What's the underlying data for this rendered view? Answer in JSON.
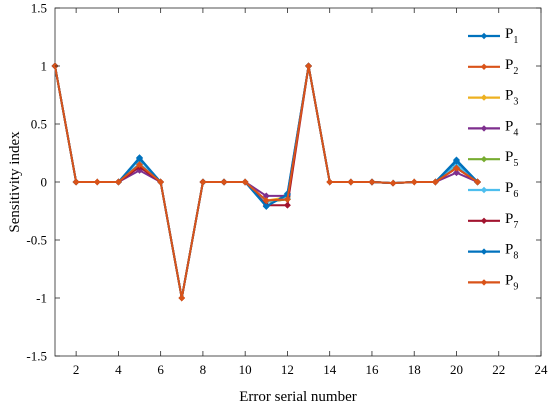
{
  "chart_data": {
    "type": "line",
    "xlabel": "Error serial number",
    "ylabel": "Sensitivity index",
    "xlim": [
      1,
      24
    ],
    "ylim": [
      -1.5,
      1.5
    ],
    "xticks": [
      2,
      4,
      6,
      8,
      10,
      12,
      14,
      16,
      18,
      20,
      22,
      24
    ],
    "yticks": [
      -1.5,
      -1,
      -0.5,
      0,
      0.5,
      1,
      1.5
    ],
    "ytick_labels": [
      "-1.5",
      "-1",
      "-0.5",
      "0",
      "0.5",
      "1",
      "1.5"
    ],
    "grid": false,
    "legend_position": "right",
    "x": [
      1,
      2,
      3,
      4,
      5,
      6,
      7,
      8,
      9,
      10,
      11,
      12,
      13,
      14,
      15,
      16,
      17,
      18,
      19,
      20,
      21
    ],
    "series": [
      {
        "name": "P",
        "sub": "1",
        "color": "#0072BD",
        "values": [
          1,
          0,
          0,
          0,
          0.21,
          0,
          -1,
          0,
          0,
          0,
          -0.21,
          -0.1,
          1,
          0,
          0,
          0,
          -0.01,
          0,
          0,
          0.19,
          0
        ]
      },
      {
        "name": "P",
        "sub": "2",
        "color": "#D95319",
        "values": [
          1,
          0,
          0,
          0,
          0.14,
          0,
          -1,
          0,
          0,
          0,
          -0.17,
          -0.15,
          1,
          0,
          0,
          0,
          -0.01,
          0,
          0,
          0.12,
          0
        ]
      },
      {
        "name": "P",
        "sub": "3",
        "color": "#EDB120",
        "values": [
          1,
          0,
          0,
          0,
          0.15,
          0,
          -1,
          0,
          0,
          0,
          -0.16,
          -0.13,
          1,
          0,
          0,
          0,
          -0.01,
          0,
          0,
          0.14,
          0
        ]
      },
      {
        "name": "P",
        "sub": "4",
        "color": "#7E2F8E",
        "values": [
          1,
          0,
          0,
          0,
          0.1,
          0,
          -1,
          0,
          0,
          0,
          -0.12,
          -0.12,
          1,
          0,
          0,
          0,
          -0.01,
          0,
          0,
          0.08,
          0
        ]
      },
      {
        "name": "P",
        "sub": "5",
        "color": "#77AC30",
        "values": [
          1,
          0,
          0,
          0,
          0.15,
          0,
          -1,
          0,
          0,
          0,
          -0.17,
          -0.15,
          1,
          0,
          0,
          0,
          -0.01,
          0,
          0,
          0.14,
          0
        ]
      },
      {
        "name": "P",
        "sub": "6",
        "color": "#4DBEEE",
        "values": [
          1,
          0,
          0,
          0,
          0.16,
          0,
          -1,
          0,
          0,
          0,
          -0.17,
          -0.14,
          1,
          0,
          0,
          0,
          -0.01,
          0,
          0,
          0.15,
          0
        ]
      },
      {
        "name": "P",
        "sub": "7",
        "color": "#A2142F",
        "values": [
          1,
          0,
          0,
          0,
          0.13,
          0,
          -1,
          0,
          0,
          0,
          -0.2,
          -0.2,
          1,
          0,
          0,
          0,
          -0.01,
          0,
          0,
          0.12,
          0
        ]
      },
      {
        "name": "P",
        "sub": "8",
        "color": "#0072BD",
        "values": [
          1,
          0,
          0,
          0,
          0.2,
          0,
          -1,
          0,
          0,
          0,
          -0.21,
          -0.11,
          1,
          0,
          0,
          0,
          -0.01,
          0,
          0,
          0.18,
          0
        ]
      },
      {
        "name": "P",
        "sub": "9",
        "color": "#D95319",
        "values": [
          1,
          0,
          0,
          0,
          0.15,
          0,
          -1,
          0,
          0,
          0,
          -0.16,
          -0.15,
          1,
          0,
          0,
          0,
          -0.01,
          0,
          0,
          0.12,
          0
        ]
      }
    ]
  }
}
